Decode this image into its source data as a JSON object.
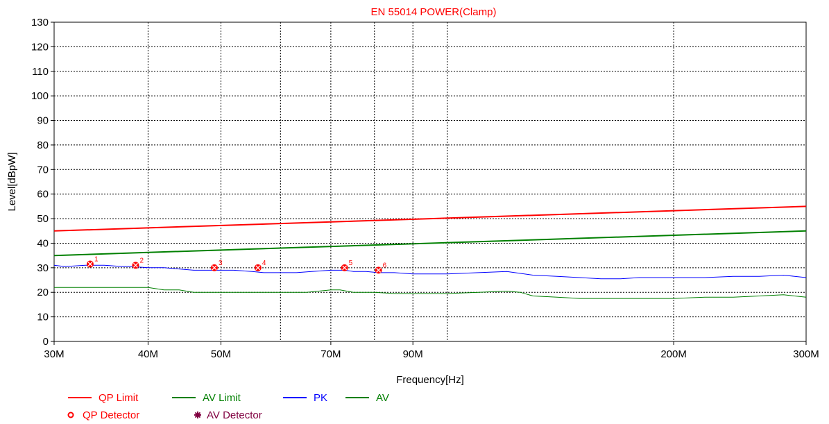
{
  "chart_data": {
    "type": "line",
    "title": "EN 55014 POWER(Clamp)",
    "xlabel": "Frequency[Hz]",
    "ylabel": "Level[dBpW]",
    "x_scale": "log",
    "xlim": [
      30,
      300
    ],
    "ylim": [
      0,
      130
    ],
    "y_ticks": [
      0,
      10,
      20,
      30,
      40,
      50,
      60,
      70,
      80,
      90,
      100,
      110,
      120,
      130
    ],
    "x_tick_labels": [
      {
        "value": 30,
        "label": "30M"
      },
      {
        "value": 40,
        "label": "40M"
      },
      {
        "value": 50,
        "label": "50M"
      },
      {
        "value": 70,
        "label": "70M"
      },
      {
        "value": 90,
        "label": "90M"
      },
      {
        "value": 200,
        "label": "200M"
      },
      {
        "value": 300,
        "label": "300M"
      }
    ],
    "x_gridlines": [
      30,
      40,
      50,
      60,
      70,
      80,
      90,
      100,
      200,
      300
    ],
    "grid": true,
    "colors": {
      "title": "#ff0000",
      "qp_limit": "#ff0000",
      "av_limit": "#008000",
      "pk": "#0000ff",
      "av": "#008000",
      "marker": "#ff0000",
      "av_detector": "#800040"
    },
    "series": [
      {
        "name": "QP Limit",
        "x": [
          30,
          300
        ],
        "y": [
          45,
          55
        ]
      },
      {
        "name": "AV Limit",
        "x": [
          30,
          300
        ],
        "y": [
          35,
          45
        ]
      },
      {
        "name": "PK",
        "x": [
          30,
          31,
          33,
          35,
          37,
          38,
          40,
          42,
          44,
          46,
          48,
          50,
          52,
          55,
          57,
          60,
          63,
          66,
          70,
          73,
          75,
          78,
          81,
          85,
          90,
          95,
          100,
          110,
          120,
          130,
          140,
          150,
          160,
          170,
          180,
          190,
          200,
          220,
          240,
          260,
          280,
          300
        ],
        "y": [
          31,
          30.5,
          31,
          31,
          30.5,
          30.5,
          30,
          30,
          29.5,
          29,
          29,
          29,
          29,
          28.5,
          28,
          28,
          28,
          28.5,
          29,
          29,
          28.5,
          28.5,
          28,
          28,
          27.5,
          27.5,
          27.5,
          28,
          28.5,
          27,
          26.5,
          26,
          25.5,
          25.5,
          26,
          26,
          26,
          26,
          26.5,
          26.5,
          27,
          26
        ]
      },
      {
        "name": "AV",
        "x": [
          30,
          33,
          35,
          38,
          40,
          42,
          44,
          46,
          50,
          55,
          60,
          65,
          70,
          72,
          75,
          80,
          85,
          90,
          95,
          100,
          110,
          120,
          125,
          130,
          140,
          150,
          160,
          180,
          200,
          220,
          240,
          260,
          280,
          300
        ],
        "y": [
          22,
          22,
          22,
          22,
          22,
          21,
          21,
          20,
          20,
          20,
          20,
          20,
          21,
          21,
          20,
          20,
          19.5,
          19.5,
          19.5,
          19.5,
          20,
          20.5,
          20,
          18.5,
          18,
          17.5,
          17.5,
          17.5,
          17.5,
          18,
          18,
          18.5,
          19,
          18
        ]
      }
    ],
    "markers": [
      {
        "id": "1",
        "x": 33.5,
        "y": 31.5
      },
      {
        "id": "2",
        "x": 38.5,
        "y": 31
      },
      {
        "id": "3",
        "x": 49,
        "y": 30
      },
      {
        "id": "4",
        "x": 56,
        "y": 30
      },
      {
        "id": "5",
        "x": 73,
        "y": 30
      },
      {
        "id": "6",
        "x": 81,
        "y": 29
      }
    ],
    "legend": {
      "placement": "bottom-left",
      "items": [
        {
          "label": "QP Limit",
          "kind": "line",
          "color_key": "qp_limit"
        },
        {
          "label": "AV Limit",
          "kind": "line",
          "color_key": "av_limit"
        },
        {
          "label": "PK",
          "kind": "line",
          "color_key": "pk"
        },
        {
          "label": "AV",
          "kind": "line",
          "color_key": "av"
        },
        {
          "label": "QP Detector",
          "kind": "circle-icon",
          "color_key": "marker"
        },
        {
          "label": "AV Detector",
          "kind": "asterisk-icon",
          "color_key": "av_detector"
        }
      ]
    }
  }
}
